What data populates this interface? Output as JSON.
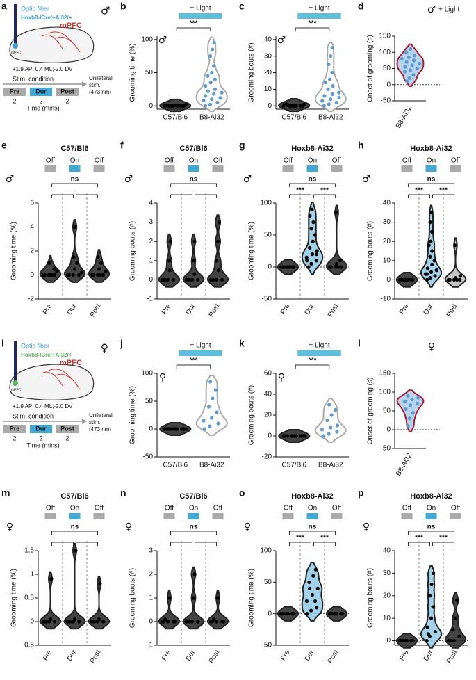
{
  "diagrams": [
    {
      "panel": "a",
      "sex": "♂",
      "fiber": "Optic fiber",
      "line": "Hoxb8-ICre/+Ai32/+",
      "line_color": "#3a9fd6",
      "region": "mPFC",
      "region_small": "mPFC",
      "coords": "+1.9 AP; 0.4 ML;-2.0 DV",
      "stim_title": "Stim. condition",
      "phases": [
        "Pre",
        "Dur",
        "Post"
      ],
      "durations": [
        "2",
        "2",
        "2"
      ],
      "time_label": "Time (mins)",
      "stim_note": [
        "Unilateral",
        "stim.",
        "(473 nm)"
      ]
    },
    {
      "panel": "i",
      "sex": "♀",
      "fiber": "Optic fiber",
      "line": "Hoxb8-ICre/+Ai32/+",
      "line_color": "#5cb85c",
      "region": "mPFC",
      "region_small": "mPFC",
      "coords": "+1.9 AP; 0.4 ML;-2.0 DV",
      "stim_title": "Stim. condition",
      "phases": [
        "Pre",
        "Dur",
        "Post"
      ],
      "durations": [
        "2",
        "2",
        "2"
      ],
      "time_label": "Time (mins)",
      "stim_note": [
        "Unilateral",
        "stim.",
        "(473 nm)"
      ]
    }
  ],
  "chart_data": [
    {
      "type": "violin",
      "panel": "b",
      "sex": "♂",
      "ylabel": "Grooming time (%)",
      "categories": [
        "C57/Bl6",
        "B8-Ai32"
      ],
      "values": [
        [
          0,
          0,
          0,
          0.5,
          1,
          0,
          0,
          0,
          1.5,
          0,
          0.5,
          0
        ],
        [
          0,
          2,
          5,
          8,
          10,
          12,
          15,
          18,
          20,
          22,
          25,
          30,
          35,
          40,
          45,
          50,
          60,
          75,
          85,
          95
        ]
      ],
      "ylim": [
        -5,
        105
      ],
      "yticks": [
        0,
        50,
        100
      ],
      "fill": [
        "#222",
        "#fff"
      ],
      "stroke": [
        "#222",
        "#aaa"
      ],
      "point_color": [
        "#000",
        "#5b9bd5"
      ],
      "light_label": "+ Light",
      "light_color": "#5bc0e0",
      "brackets": [
        {
          "label": "***",
          "from": 0,
          "to": 1
        }
      ],
      "rotate_labels": false,
      "zero_line": false
    },
    {
      "type": "violin",
      "panel": "c",
      "sex": "♂",
      "ylabel": "Grooming bouts (#)",
      "categories": [
        "C57/Bl6",
        "B8-Ai32"
      ],
      "values": [
        [
          0,
          0,
          0,
          1,
          0,
          0,
          0.5,
          0,
          1,
          0
        ],
        [
          0,
          1,
          2,
          3,
          4,
          5,
          6,
          7,
          8,
          10,
          12,
          14,
          16,
          20,
          25,
          30,
          35
        ]
      ],
      "ylim": [
        -2,
        42
      ],
      "yticks": [
        0,
        10,
        20,
        30,
        40
      ],
      "fill": [
        "#222",
        "#fff"
      ],
      "stroke": [
        "#222",
        "#aaa"
      ],
      "point_color": [
        "#000",
        "#5b9bd5"
      ],
      "light_label": "+ Light",
      "light_color": "#5bc0e0",
      "brackets": [
        {
          "label": "***",
          "from": 0,
          "to": 1
        }
      ],
      "rotate_labels": false,
      "zero_line": false
    },
    {
      "type": "violin",
      "panel": "d",
      "sex": "♂",
      "ylabel": "Onset of grooming (s)",
      "categories": [
        "B8-Ai32"
      ],
      "values": [
        [
          10,
          20,
          30,
          40,
          45,
          50,
          55,
          60,
          65,
          70,
          75,
          80,
          85,
          90,
          100,
          110
        ]
      ],
      "ylim": [
        -50,
        150
      ],
      "yticks": [
        -50,
        0,
        50,
        100,
        150
      ],
      "fill": [
        "#a9cde8"
      ],
      "stroke": [
        "#b2182b"
      ],
      "point_color": [
        "#5b9bd5"
      ],
      "light_label": "+ Light",
      "light_color": "#5bc0e0",
      "brackets": [],
      "rotate_labels": true,
      "zero_line": true
    },
    {
      "type": "violin",
      "panel": "e",
      "title": "C57/Bl6",
      "sex": "♂",
      "ylabel": "Grooming time (%)",
      "categories": [
        "Pre",
        "Dur",
        "Post"
      ],
      "values": [
        [
          0,
          0,
          0,
          0,
          0,
          0.5,
          1,
          0,
          0.3
        ],
        [
          0,
          0,
          0,
          0,
          0.5,
          1,
          1.5,
          4,
          0.2
        ],
        [
          0,
          0,
          0,
          0,
          0.5,
          1,
          1.5,
          0,
          0.3
        ]
      ],
      "ylim": [
        -2,
        6
      ],
      "yticks": [
        -2,
        0,
        2,
        4,
        6
      ],
      "fill": [
        "#222",
        "#222",
        "#222"
      ],
      "stroke": [
        "#222",
        "#222",
        "#222"
      ],
      "point_color": [
        "#000",
        "#000",
        "#000"
      ],
      "stim": [
        "Off",
        "On",
        "Off"
      ],
      "stim_colors": [
        "#aaa",
        "#3fa9d8",
        "#aaa"
      ],
      "brackets": [
        {
          "from": 0,
          "to": 1
        },
        {
          "from": 1,
          "to": 2
        },
        {
          "label": "ns",
          "from": 0,
          "to": 2
        }
      ],
      "rotate_labels": true,
      "zero_line": true
    },
    {
      "type": "violin",
      "panel": "f",
      "title": "C57/Bl6",
      "sex": "♂",
      "ylabel": "Grooming bouts (#)",
      "categories": [
        "Pre",
        "Dur",
        "Post"
      ],
      "values": [
        [
          0,
          0,
          0,
          0,
          1,
          2,
          0,
          0.5
        ],
        [
          0,
          0,
          0,
          0,
          1,
          2,
          0,
          0.3
        ],
        [
          0,
          0,
          0,
          1,
          2,
          3,
          0,
          0.5
        ]
      ],
      "ylim": [
        -1,
        4
      ],
      "yticks": [
        -1,
        0,
        1,
        2,
        3,
        4
      ],
      "fill": [
        "#222",
        "#222",
        "#222"
      ],
      "stroke": [
        "#222",
        "#222",
        "#222"
      ],
      "point_color": [
        "#000",
        "#000",
        "#000"
      ],
      "stim": [
        "Off",
        "On",
        "Off"
      ],
      "stim_colors": [
        "#aaa",
        "#3fa9d8",
        "#aaa"
      ],
      "brackets": [
        {
          "from": 0,
          "to": 1
        },
        {
          "from": 1,
          "to": 2
        },
        {
          "label": "ns",
          "from": 0,
          "to": 2
        }
      ],
      "rotate_labels": true,
      "zero_line": true
    },
    {
      "type": "violin",
      "panel": "g",
      "title": "Hoxb8-Ai32",
      "sex": "♂",
      "ylabel": "Grooming time (%)",
      "categories": [
        "Pre",
        "Dur",
        "Post"
      ],
      "values": [
        [
          0,
          0,
          0,
          0,
          0,
          0,
          0,
          0
        ],
        [
          0,
          5,
          10,
          15,
          20,
          25,
          30,
          40,
          50,
          60,
          70,
          80,
          90,
          20,
          10
        ],
        [
          0,
          0,
          0,
          0,
          5,
          10,
          85,
          0
        ]
      ],
      "ylim": [
        -50,
        100
      ],
      "yticks": [
        -50,
        0,
        50,
        100
      ],
      "fill": [
        "#222",
        "#8fcbe8",
        "#222"
      ],
      "stroke": [
        "#222",
        "#222",
        "#222"
      ],
      "point_color": [
        "#000",
        "#000",
        "#000"
      ],
      "stim": [
        "Off",
        "On",
        "Off"
      ],
      "stim_colors": [
        "#aaa",
        "#3fa9d8",
        "#aaa"
      ],
      "brackets": [
        {
          "label": "***",
          "from": 0,
          "to": 1
        },
        {
          "label": "***",
          "from": 1,
          "to": 2
        },
        {
          "label": "ns",
          "from": 0,
          "to": 2
        }
      ],
      "rotate_labels": true,
      "zero_line": true
    },
    {
      "type": "violin",
      "panel": "h",
      "title": "Hoxb8-Ai32",
      "sex": "♂",
      "ylabel": "Grooming bouts (#)",
      "categories": [
        "Pre",
        "Dur",
        "Post"
      ],
      "values": [
        [
          0,
          0,
          0,
          0,
          0,
          0,
          0,
          0
        ],
        [
          0,
          1,
          2,
          3,
          4,
          5,
          6,
          8,
          10,
          12,
          15,
          18,
          20,
          25,
          30,
          35,
          5,
          3
        ],
        [
          0,
          0,
          0,
          0,
          1,
          2,
          18,
          0
        ]
      ],
      "ylim": [
        -10,
        40
      ],
      "yticks": [
        -10,
        0,
        10,
        20,
        30,
        40
      ],
      "fill": [
        "#222",
        "#8fcbe8",
        "#bbb"
      ],
      "stroke": [
        "#222",
        "#222",
        "#222"
      ],
      "point_color": [
        "#000",
        "#000",
        "#000"
      ],
      "stim": [
        "Off",
        "On",
        "Off"
      ],
      "stim_colors": [
        "#aaa",
        "#3fa9d8",
        "#aaa"
      ],
      "brackets": [
        {
          "label": "***",
          "from": 0,
          "to": 1
        },
        {
          "label": "***",
          "from": 1,
          "to": 2
        },
        {
          "label": "ns",
          "from": 0,
          "to": 2
        }
      ],
      "rotate_labels": true,
      "zero_line": true
    },
    {
      "type": "violin",
      "panel": "j",
      "sex": "♀",
      "ylabel": "Grooming time (%)",
      "categories": [
        "C57/Bl6",
        "B8-Ai32"
      ],
      "values": [
        [
          0,
          0,
          0,
          0,
          0,
          0,
          0,
          0,
          0,
          0
        ],
        [
          0,
          5,
          10,
          15,
          20,
          30,
          40,
          55,
          70,
          85
        ]
      ],
      "ylim": [
        -50,
        100
      ],
      "yticks": [
        -50,
        0,
        50,
        100
      ],
      "fill": [
        "#222",
        "#fff"
      ],
      "stroke": [
        "#222",
        "#aaa"
      ],
      "point_color": [
        "#000",
        "#5b9bd5"
      ],
      "light_label": "+ Light",
      "light_color": "#5bc0e0",
      "brackets": [
        {
          "label": "***",
          "from": 0,
          "to": 1
        }
      ],
      "rotate_labels": false,
      "zero_line": false
    },
    {
      "type": "violin",
      "panel": "k",
      "sex": "♀",
      "ylabel": "Grooming bouts (#)",
      "categories": [
        "C57/Bl6",
        "B8-Ai32"
      ],
      "values": [
        [
          0,
          0,
          0,
          0,
          0,
          0,
          0,
          0,
          0
        ],
        [
          0,
          2,
          4,
          6,
          8,
          10,
          15,
          20,
          25,
          30
        ]
      ],
      "ylim": [
        -20,
        60
      ],
      "yticks": [
        -20,
        0,
        20,
        40,
        60
      ],
      "fill": [
        "#222",
        "#fff"
      ],
      "stroke": [
        "#222",
        "#aaa"
      ],
      "point_color": [
        "#000",
        "#5b9bd5"
      ],
      "light_label": "+ Light",
      "light_color": "#5bc0e0",
      "brackets": [
        {
          "label": "***",
          "from": 0,
          "to": 1
        }
      ],
      "rotate_labels": false,
      "zero_line": false
    },
    {
      "type": "violin",
      "panel": "l",
      "sex": "♀",
      "ylabel": "Onset of grooming (s)",
      "categories": [
        "B8-Ai32"
      ],
      "values": [
        [
          10,
          30,
          45,
          55,
          65,
          70,
          75,
          80,
          85,
          90
        ]
      ],
      "ylim": [
        -50,
        150
      ],
      "yticks": [
        -50,
        0,
        50,
        100,
        150
      ],
      "fill": [
        "#a9cde8"
      ],
      "stroke": [
        "#b2182b"
      ],
      "point_color": [
        "#5b9bd5"
      ],
      "brackets": [],
      "rotate_labels": true,
      "zero_line": true
    },
    {
      "type": "violin",
      "panel": "m",
      "title": "C57/Bl6",
      "sex": "♀",
      "ylabel": "Grooming time (%)",
      "categories": [
        "Pre",
        "Dur",
        "Post"
      ],
      "values": [
        [
          0,
          0,
          0,
          0,
          0.05,
          0.9,
          0
        ],
        [
          0,
          0,
          0,
          0,
          0.05,
          1.5,
          0
        ],
        [
          0,
          0,
          0,
          0,
          0.05,
          0.8,
          0
        ]
      ],
      "ylim": [
        -0.5,
        1.5
      ],
      "yticks": [
        -0.5,
        0,
        0.5,
        1,
        1.5
      ],
      "fill": [
        "#222",
        "#222",
        "#222"
      ],
      "stroke": [
        "#222",
        "#222",
        "#222"
      ],
      "point_color": [
        "#000",
        "#000",
        "#000"
      ],
      "stim": [
        "Off",
        "On",
        "Off"
      ],
      "stim_colors": [
        "#aaa",
        "#3fa9d8",
        "#aaa"
      ],
      "brackets": [
        {
          "from": 0,
          "to": 1
        },
        {
          "from": 1,
          "to": 2
        },
        {
          "label": "ns",
          "from": 0,
          "to": 2
        }
      ],
      "rotate_labels": true,
      "zero_line": true
    },
    {
      "type": "violin",
      "panel": "n",
      "title": "C57/Bl6",
      "sex": "♀",
      "ylabel": "Grooming bouts (#)",
      "categories": [
        "Pre",
        "Dur",
        "Post"
      ],
      "values": [
        [
          0,
          0,
          0,
          0,
          1,
          0,
          0.1
        ],
        [
          0,
          0,
          0,
          0,
          1,
          2,
          0
        ],
        [
          0,
          0,
          0,
          0,
          1,
          0,
          0.1
        ]
      ],
      "ylim": [
        -1,
        3
      ],
      "yticks": [
        -1,
        0,
        1,
        2,
        3
      ],
      "fill": [
        "#222",
        "#222",
        "#222"
      ],
      "stroke": [
        "#222",
        "#222",
        "#222"
      ],
      "point_color": [
        "#000",
        "#000",
        "#000"
      ],
      "stim": [
        "Off",
        "On",
        "Off"
      ],
      "stim_colors": [
        "#aaa",
        "#3fa9d8",
        "#aaa"
      ],
      "brackets": [
        {
          "from": 0,
          "to": 1
        },
        {
          "from": 1,
          "to": 2
        },
        {
          "label": "ns",
          "from": 0,
          "to": 2
        }
      ],
      "rotate_labels": true,
      "zero_line": true
    },
    {
      "type": "violin",
      "panel": "o",
      "title": "Hoxb8-Ai32",
      "sex": "♀",
      "ylabel": "Grooming time (%)",
      "categories": [
        "Pre",
        "Dur",
        "Post"
      ],
      "values": [
        [
          0,
          0,
          0,
          0,
          0,
          0,
          0
        ],
        [
          0,
          5,
          10,
          20,
          30,
          40,
          50,
          60,
          70,
          40,
          20
        ],
        [
          0,
          0,
          0,
          0,
          0,
          0,
          0
        ]
      ],
      "ylim": [
        -50,
        100
      ],
      "yticks": [
        -50,
        0,
        50,
        100
      ],
      "fill": [
        "#222",
        "#8fcbe8",
        "#222"
      ],
      "stroke": [
        "#222",
        "#222",
        "#222"
      ],
      "point_color": [
        "#000",
        "#000",
        "#000"
      ],
      "stim": [
        "Off",
        "On",
        "Off"
      ],
      "stim_colors": [
        "#aaa",
        "#3fa9d8",
        "#aaa"
      ],
      "brackets": [
        {
          "label": "***",
          "from": 0,
          "to": 1
        },
        {
          "label": "***",
          "from": 1,
          "to": 2
        },
        {
          "label": "ns",
          "from": 0,
          "to": 2
        }
      ],
      "rotate_labels": true,
      "zero_line": true
    },
    {
      "type": "violin",
      "panel": "p",
      "title": "Hoxb8-Ai32",
      "sex": "♀",
      "ylabel": "Grooming bouts (#)",
      "categories": [
        "Pre",
        "Dur",
        "Post"
      ],
      "values": [
        [
          0,
          0,
          0,
          0,
          0,
          0,
          0
        ],
        [
          0,
          2,
          4,
          6,
          10,
          15,
          20,
          25,
          30,
          3
        ],
        [
          0,
          0,
          2,
          5,
          10,
          18,
          0
        ]
      ],
      "ylim": [
        -2,
        40
      ],
      "yticks": [
        0,
        10,
        20,
        30,
        40
      ],
      "fill": [
        "#222",
        "#8fcbe8",
        "#222"
      ],
      "stroke": [
        "#222",
        "#222",
        "#222"
      ],
      "point_color": [
        "#000",
        "#000",
        "#000"
      ],
      "stim": [
        "Off",
        "On",
        "Off"
      ],
      "stim_colors": [
        "#aaa",
        "#3fa9d8",
        "#aaa"
      ],
      "brackets": [
        {
          "label": "***",
          "from": 0,
          "to": 1
        },
        {
          "label": "***",
          "from": 1,
          "to": 2
        },
        {
          "label": "ns",
          "from": 0,
          "to": 2
        }
      ],
      "rotate_labels": true,
      "zero_line": true
    }
  ]
}
